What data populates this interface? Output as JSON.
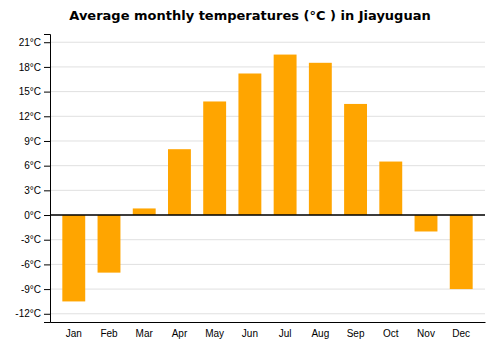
{
  "chart_data": {
    "type": "bar",
    "title": "Average monthly temperatures (°C ) in Jiayuguan",
    "categories": [
      "Jan",
      "Feb",
      "Mar",
      "Apr",
      "May",
      "Jun",
      "Jul",
      "Aug",
      "Sep",
      "Oct",
      "Nov",
      "Dec"
    ],
    "values": [
      -10.5,
      -7.0,
      0.8,
      8.0,
      13.8,
      17.2,
      19.5,
      18.5,
      13.5,
      6.5,
      -2.0,
      -9.0
    ],
    "color": "#FFA500",
    "ylim": [
      -13,
      22
    ],
    "yticks": [
      {
        "value": -12,
        "label": "-12°C"
      },
      {
        "value": -9,
        "label": "-9°C"
      },
      {
        "value": -6,
        "label": "-6°C"
      },
      {
        "value": -3,
        "label": "-3°C"
      },
      {
        "value": 0,
        "label": "0°C"
      },
      {
        "value": 3,
        "label": "3°C"
      },
      {
        "value": 6,
        "label": "6°C"
      },
      {
        "value": 9,
        "label": "9°C"
      },
      {
        "value": 12,
        "label": "12°C"
      },
      {
        "value": 15,
        "label": "15°C"
      },
      {
        "value": 18,
        "label": "18°C"
      },
      {
        "value": 21,
        "label": "21°C"
      }
    ],
    "grid": true
  }
}
